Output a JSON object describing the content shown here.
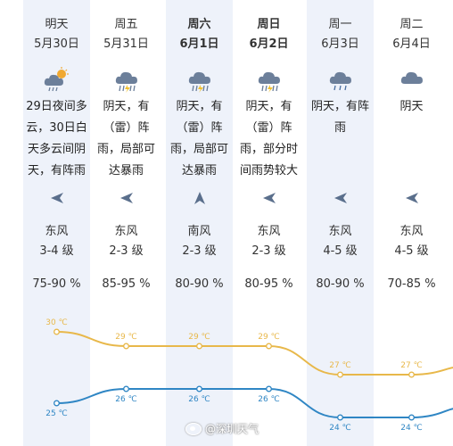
{
  "days": [
    {
      "day": "明天",
      "date": "5月30日",
      "icon": "cloudy-sun-rain-icon",
      "desc": "29日夜间多云，30日白天多云间阴天，有阵雨",
      "wind_dir": "东风",
      "wind_arrow": "left",
      "wind_level": "3-4 级",
      "humidity": "75-90 %",
      "bold": false,
      "shaded": true
    },
    {
      "day": "周五",
      "date": "5月31日",
      "icon": "thunder-rain-icon",
      "desc": "阴天，有（雷）阵雨，局部可达暴雨",
      "wind_dir": "东风",
      "wind_arrow": "left",
      "wind_level": "2-3 级",
      "humidity": "85-95 %",
      "bold": false,
      "shaded": false
    },
    {
      "day": "周六",
      "date": "6月1日",
      "icon": "thunder-rain-icon",
      "desc": "阴天，有（雷）阵雨，局部可达暴雨",
      "wind_dir": "南风",
      "wind_arrow": "up",
      "wind_level": "2-3 级",
      "humidity": "80-90 %",
      "bold": true,
      "shaded": true
    },
    {
      "day": "周日",
      "date": "6月2日",
      "icon": "thunder-rain-icon",
      "desc": "阴天，有（雷）阵雨，部分时间雨势较大",
      "wind_dir": "东风",
      "wind_arrow": "left",
      "wind_level": "2-3 级",
      "humidity": "80-95 %",
      "bold": true,
      "shaded": false
    },
    {
      "day": "周一",
      "date": "6月3日",
      "icon": "cloud-rain-icon",
      "desc": "阴天，有阵雨",
      "wind_dir": "东风",
      "wind_arrow": "left",
      "wind_level": "4-5 级",
      "humidity": "80-90 %",
      "bold": false,
      "shaded": true
    },
    {
      "day": "周二",
      "date": "6月4日",
      "icon": "overcast-cloud-icon",
      "desc": "阴天",
      "wind_dir": "东风",
      "wind_arrow": "left",
      "wind_level": "4-5 级",
      "humidity": "70-85 %",
      "bold": false,
      "shaded": false
    }
  ],
  "chart_data": {
    "type": "line",
    "categories": [
      "5月30日",
      "5月31日",
      "6月1日",
      "6月2日",
      "6月3日",
      "6月4日"
    ],
    "series": [
      {
        "values": [
          30,
          29,
          29,
          29,
          27,
          27
        ],
        "labels": [
          "30 ℃",
          "29 ℃",
          "29 ℃",
          "29 ℃",
          "27 ℃",
          "27 ℃"
        ],
        "color": "#e8b84a"
      },
      {
        "values": [
          25,
          26,
          26,
          26,
          24,
          24
        ],
        "labels": [
          "25 ℃",
          "26 ℃",
          "26 ℃",
          "26 ℃",
          "24 ℃",
          "24 ℃"
        ],
        "color": "#2f86c4"
      }
    ],
    "ylim": [
      22,
      32
    ]
  },
  "colors": {
    "shade": "#eef2fa",
    "arrow": "#5a6f8c",
    "icon": "#6c7f9a"
  },
  "watermark": "@深圳天气"
}
